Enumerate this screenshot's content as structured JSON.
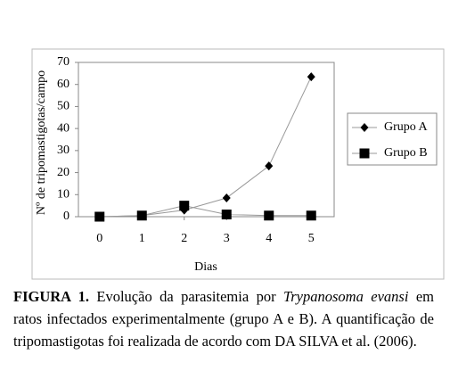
{
  "chart_data": {
    "type": "line",
    "y_label": "Nº de tripomastigotas/campo",
    "x_label": "Dias",
    "x": [
      0,
      1,
      2,
      3,
      4,
      5
    ],
    "xlim": [
      -0.5,
      5.5
    ],
    "xticks": [
      0,
      1,
      2,
      3,
      4,
      5
    ],
    "ylim": [
      0,
      70
    ],
    "yticks": [
      0,
      10,
      20,
      30,
      40,
      50,
      60,
      70
    ],
    "grid": false,
    "legend": "right",
    "series": [
      {
        "name": "Grupo A",
        "color": "#999999",
        "marker": "diamond",
        "values": [
          0,
          0.5,
          3,
          8.5,
          23,
          63.5
        ]
      },
      {
        "name": "Grupo B",
        "color": "#999999",
        "marker": "square",
        "values": [
          0,
          0.5,
          5,
          1,
          0.5,
          0.5
        ]
      }
    ]
  },
  "caption": {
    "label": "FIGURA 1.",
    "text_1": " Evolução da parasitemia por ",
    "species": "Trypanosoma evansi",
    "text_2": " em ratos infectados experimentalmente (grupo A e B). A quantificação de tripomastigotas foi realizada de acordo com DA SILVA et al. (2006)."
  }
}
